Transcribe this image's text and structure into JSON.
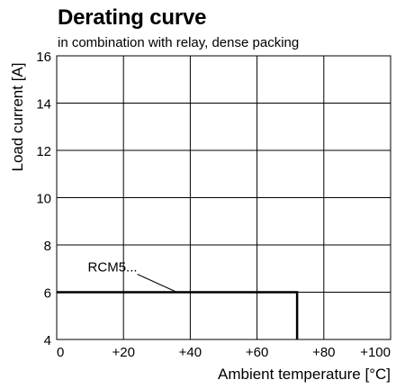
{
  "chart_data": {
    "type": "line",
    "title": "Derating curve",
    "subtitle": "in combination with relay, dense packing",
    "xlabel": "Ambient temperature [°C]",
    "ylabel": "Load current [A]",
    "xlim": [
      0,
      100
    ],
    "ylim": [
      4,
      16
    ],
    "x_ticks": [
      0,
      20,
      40,
      60,
      80,
      100
    ],
    "x_tick_labels": [
      "0",
      "+20",
      "+40",
      "+60",
      "+80",
      "+100"
    ],
    "y_ticks": [
      4,
      6,
      8,
      10,
      12,
      14,
      16
    ],
    "y_tick_labels": [
      "4",
      "6",
      "8",
      "10",
      "12",
      "14",
      "16"
    ],
    "grid": true,
    "series": [
      {
        "name": "RCM5...",
        "x": [
          0,
          72,
          72
        ],
        "y": [
          6,
          6,
          4
        ]
      }
    ],
    "annotations": [
      {
        "text": "RCM5...",
        "x": 36,
        "y": 6
      }
    ]
  }
}
